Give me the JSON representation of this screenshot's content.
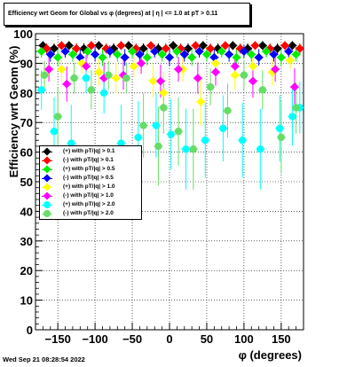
{
  "chart_data": {
    "type": "scatter",
    "title": "Efficiency wrt Geom for Global vs φ (degrees) at |  η | <= 1.0 at pT > 0.11",
    "xlabel": "φ (degrees)",
    "ylabel": "Efficiency wrt Geom (%)",
    "xlim": [
      -180,
      180
    ],
    "ylim": [
      0,
      100
    ],
    "xticks": [
      -150,
      -100,
      -50,
      0,
      50,
      100,
      150
    ],
    "yticks": [
      0,
      10,
      20,
      30,
      40,
      50,
      60,
      70,
      80,
      90,
      100
    ],
    "x_tick_labels": [
      "−150",
      "−100",
      "−50",
      "0",
      "50",
      "100",
      "150"
    ],
    "grid": true,
    "legend_position": "left-middle",
    "footer": "Wed Sep 21 08:28:54 2022",
    "series": [
      {
        "name": "(+) with pT/|q| > 0.1",
        "color": "#000000",
        "marker": "diamond",
        "x": [
          -170,
          -155,
          -135,
          -115,
          -95,
          -75,
          -55,
          -35,
          -15,
          5,
          25,
          45,
          65,
          85,
          105,
          125,
          145,
          165
        ],
        "y": [
          96,
          95,
          96,
          95,
          96,
          95,
          96,
          95,
          95,
          96,
          95,
          96,
          95,
          96,
          95,
          96,
          95,
          96
        ]
      },
      {
        "name": "(-) with pT/|q| > 0.1",
        "color": "#ff0000",
        "marker": "diamond",
        "x": [
          -165,
          -145,
          -125,
          -105,
          -85,
          -65,
          -45,
          -25,
          -5,
          15,
          35,
          55,
          75,
          95,
          115,
          135,
          155,
          175
        ],
        "y": [
          95,
          96,
          95,
          96,
          95,
          96,
          95,
          96,
          95,
          95,
          96,
          95,
          96,
          95,
          96,
          95,
          96,
          95
        ]
      },
      {
        "name": "(+) with pT/|q| > 0.5",
        "color": "#00ee00",
        "marker": "diamond",
        "x": [
          -172,
          -150,
          -130,
          -110,
          -90,
          -70,
          -50,
          -30,
          -10,
          10,
          30,
          50,
          70,
          90,
          110,
          130,
          150,
          170
        ],
        "y": [
          94,
          92,
          93,
          94,
          92,
          93,
          94,
          92,
          93,
          94,
          92,
          93,
          94,
          92,
          93,
          94,
          92,
          93
        ]
      },
      {
        "name": "(-) with pT/|q| > 0.5",
        "color": "#0000ff",
        "marker": "diamond",
        "x": [
          -160,
          -140,
          -120,
          -100,
          -80,
          -60,
          -40,
          -20,
          0,
          20,
          40,
          60,
          80,
          100,
          120,
          140,
          160
        ],
        "y": [
          93,
          94,
          92,
          93,
          94,
          92,
          93,
          94,
          92,
          93,
          94,
          92,
          93,
          94,
          92,
          93,
          94
        ]
      },
      {
        "name": "(+) with pT/|q| > 1.0",
        "color": "#ffff00",
        "marker": "diamond",
        "x": [
          -168,
          -145,
          -118,
          -95,
          -72,
          -48,
          -22,
          -8,
          18,
          42,
          62,
          88,
          112,
          138,
          162
        ],
        "y": [
          86,
          88,
          90,
          87,
          85,
          89,
          84,
          80,
          88,
          77,
          90,
          86,
          89,
          87,
          91
        ]
      },
      {
        "name": "(-) with pT/|q| > 1.0",
        "color": "#ff00ff",
        "marker": "diamond",
        "x": [
          -162,
          -138,
          -112,
          -88,
          -62,
          -38,
          -12,
          12,
          38,
          62,
          88,
          112,
          142,
          168
        ],
        "y": [
          88,
          83,
          89,
          85,
          86,
          90,
          84,
          88,
          85,
          87,
          89,
          84,
          88,
          82
        ]
      },
      {
        "name": "(+) with pT/|q| > 2.0",
        "color": "#00ffff",
        "marker": "circle",
        "x": [
          -172,
          -155,
          -132,
          -112,
          -88,
          -65,
          -42,
          -18,
          2,
          22,
          48,
          72,
          98,
          122,
          148,
          165,
          175
        ],
        "y": [
          81,
          67,
          63,
          85,
          80,
          63,
          65,
          69,
          66,
          61,
          64,
          68,
          64,
          61,
          68,
          72,
          75
        ]
      },
      {
        "name": "(-) with pT/|q| > 2.0",
        "color": "#66dd66",
        "marker": "circle",
        "x": [
          -168,
          -150,
          -128,
          -105,
          -82,
          -58,
          -35,
          -15,
          -8,
          12,
          32,
          55,
          78,
          100,
          125,
          150,
          170
        ],
        "y": [
          86,
          72,
          85,
          81,
          86,
          85,
          69,
          62,
          75,
          67,
          61,
          82,
          74,
          86,
          81,
          65,
          75
        ]
      }
    ]
  }
}
